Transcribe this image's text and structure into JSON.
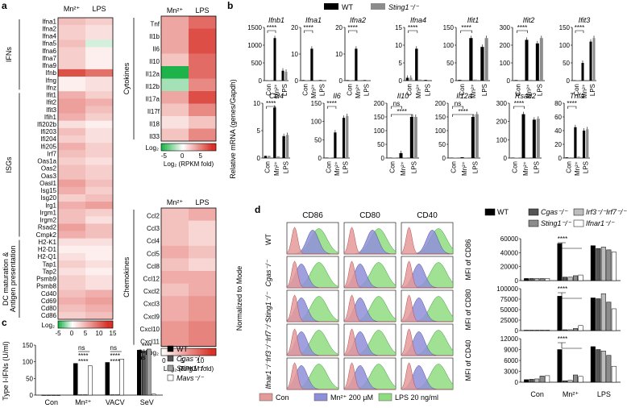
{
  "colors": {
    "red": "#d73027",
    "pink": "#f4a6a0",
    "white": "#ffffff",
    "green": "#1db34a",
    "black": "#000000",
    "gray": "#8c8c8c",
    "hist_red": "#e59a9a",
    "hist_blue": "#8f8fd8",
    "hist_green": "#8fdc80"
  },
  "panel_a": {
    "letter": "a",
    "col_labels": [
      "Mn²⁺",
      "LPS"
    ],
    "ifn_genes": [
      "Ifna1",
      "Ifna2",
      "Ifna4",
      "Ifna5",
      "Ifna6",
      "Ifna7",
      "Ifna9",
      "Ifnb",
      "Ifng",
      "Ifnz"
    ],
    "ifn_vals": [
      [
        4,
        3
      ],
      [
        3,
        2
      ],
      [
        3,
        2
      ],
      [
        4,
        -1
      ],
      [
        3,
        1
      ],
      [
        3,
        1
      ],
      [
        3,
        1
      ],
      [
        11,
        9
      ],
      [
        1,
        2
      ],
      [
        1,
        2
      ]
    ],
    "isg_genes": [
      "Ifit1",
      "Ifit2",
      "Ifit3",
      "Ifih1",
      "Ifi202b",
      "Ifi203",
      "Ifi204",
      "Ifi205",
      "Irf7",
      "Oas1a",
      "Oas2",
      "Oas3",
      "Oasl1",
      "Isg15",
      "Isg20",
      "Irg1",
      "Irgm1",
      "Irgm2",
      "Rsad2",
      "Cmpk2"
    ],
    "isg_vals": [
      [
        5,
        3
      ],
      [
        6,
        5
      ],
      [
        6,
        4
      ],
      [
        5,
        3
      ],
      [
        2,
        1
      ],
      [
        4,
        2
      ],
      [
        3,
        2
      ],
      [
        5,
        3
      ],
      [
        4,
        3
      ],
      [
        3,
        2
      ],
      [
        4,
        3
      ],
      [
        4,
        3
      ],
      [
        6,
        4
      ],
      [
        5,
        3
      ],
      [
        3,
        4
      ],
      [
        5,
        6
      ],
      [
        4,
        3
      ],
      [
        4,
        2
      ],
      [
        6,
        4
      ],
      [
        5,
        4
      ]
    ],
    "dc_genes": [
      "H2-K1",
      "H2-D1",
      "H2-Q1",
      "Tap1",
      "Tap2",
      "Psmb9",
      "Psmb8",
      "Cd40",
      "Cd69",
      "Cd80",
      "Cd86"
    ],
    "dc_vals": [
      [
        2,
        2
      ],
      [
        1,
        1
      ],
      [
        2,
        1
      ],
      [
        3,
        2
      ],
      [
        2,
        1
      ],
      [
        3,
        2
      ],
      [
        3,
        2
      ],
      [
        4,
        5
      ],
      [
        5,
        6
      ],
      [
        4,
        5
      ],
      [
        3,
        4
      ]
    ],
    "group_ifn": "IFNs",
    "group_isg": "ISGs",
    "group_dc": "DC maturation & Antigen presentation",
    "legend_title": "Log₂",
    "legend_ticks": [
      "-5",
      "0",
      "5",
      "10",
      "15"
    ]
  },
  "panel_cyto": {
    "col_labels": [
      "Mn²⁺",
      "LPS"
    ],
    "genes": [
      "Tnf",
      "Il1b",
      "Il6",
      "Il10",
      "Il12a",
      "Il12b",
      "Il17a",
      "Il17f",
      "Il18",
      "Il33"
    ],
    "vals": [
      [
        3,
        5
      ],
      [
        3,
        6
      ],
      [
        3,
        6
      ],
      [
        2,
        5
      ],
      [
        -5,
        5
      ],
      [
        -2,
        4
      ],
      [
        3,
        6
      ],
      [
        2,
        4
      ],
      [
        1,
        2
      ],
      [
        2,
        4
      ]
    ],
    "group": "Cytokines",
    "legend_title": "Log₂",
    "legend_ticks": [
      "-5",
      "0",
      "5"
    ],
    "legend_caption": "Log₂ (RPKM fold)"
  },
  "panel_chemo": {
    "col_labels": [
      "Mn²⁺",
      "LPS"
    ],
    "genes": [
      "Ccl2",
      "Ccl3",
      "Ccl4",
      "Ccl5",
      "Ccl8",
      "Ccl12",
      "Cxcl2",
      "Cxcl3",
      "Cxcl9",
      "Cxcl10",
      "Cxcl11"
    ],
    "vals": [
      [
        3,
        4
      ],
      [
        3,
        2
      ],
      [
        3,
        2
      ],
      [
        4,
        3
      ],
      [
        3,
        2
      ],
      [
        4,
        4
      ],
      [
        3,
        4
      ],
      [
        4,
        5
      ],
      [
        4,
        5
      ],
      [
        5,
        6
      ],
      [
        5,
        6
      ]
    ],
    "group": "Chemokines",
    "legend_title": "Log₂",
    "legend_ticks": [
      "0",
      "5",
      "10"
    ],
    "legend_caption": "Log₂ (RPKM fold)"
  },
  "panel_b": {
    "letter": "b",
    "legend": [
      "WT",
      "Sting1⁻/⁻"
    ],
    "ylabel": "Relative mRNA (genes/Gapdh)",
    "xcats": [
      "Con",
      "Mn²⁺",
      "LPS"
    ],
    "sig": "****",
    "ns": "ns",
    "charts": [
      {
        "gene": "Ifnb1",
        "ticks": [
          "0",
          "500",
          "1000",
          "1500"
        ],
        "ymax": 1500,
        "wt": [
          5,
          1200,
          280
        ],
        "ko": [
          5,
          6,
          250
        ],
        "sigs": [
          [
            0,
            1,
            "****"
          ]
        ]
      },
      {
        "gene": "Ifna1",
        "ticks": [
          "0",
          "10",
          "20"
        ],
        "ymax": 20,
        "wt": [
          0.2,
          12,
          0.2
        ],
        "ko": [
          0.2,
          0.2,
          0.2
        ],
        "sigs": [
          [
            0,
            1,
            "****"
          ]
        ]
      },
      {
        "gene": "Ifna2",
        "ticks": [
          "0",
          "10",
          "20"
        ],
        "ymax": 20,
        "wt": [
          0.2,
          12,
          0.2
        ],
        "ko": [
          0.2,
          0.2,
          0.2
        ],
        "sigs": [
          [
            0,
            1,
            "****"
          ]
        ]
      },
      {
        "gene": "Ifna4",
        "ticks": [
          "0",
          "5",
          "10",
          "15"
        ],
        "ymax": 15,
        "wt": [
          0.8,
          9,
          0.2
        ],
        "ko": [
          0.8,
          0.3,
          0.2
        ],
        "sigs": [
          [
            0,
            1,
            "****"
          ]
        ]
      },
      {
        "gene": "Ifit1",
        "ticks": [
          "0",
          "50",
          "100",
          "150"
        ],
        "ymax": 150,
        "wt": [
          2,
          120,
          95
        ],
        "ko": [
          2,
          3,
          120
        ],
        "sigs": [
          [
            0,
            1,
            "****"
          ]
        ]
      },
      {
        "gene": "Ifit2",
        "ticks": [
          "0",
          "100",
          "200",
          "300"
        ],
        "ymax": 300,
        "wt": [
          3,
          230,
          210
        ],
        "ko": [
          3,
          5,
          240
        ],
        "sigs": [
          [
            0,
            1,
            "****"
          ]
        ]
      },
      {
        "gene": "Ifit3",
        "ticks": [
          "0",
          "50",
          "100",
          "150"
        ],
        "ymax": 150,
        "wt": [
          1,
          50,
          110
        ],
        "ko": [
          1,
          2,
          120
        ],
        "sigs": [
          [
            0,
            1,
            "****"
          ]
        ]
      },
      {
        "gene": "Ccl4",
        "ticks": [
          "0",
          "5",
          "10"
        ],
        "ymax": 10,
        "wt": [
          0.4,
          9.2,
          4
        ],
        "ko": [
          0.4,
          0.3,
          4.2
        ],
        "sigs": [
          [
            0,
            1,
            "****"
          ]
        ]
      },
      {
        "gene": "Il6",
        "ticks": [
          "0",
          "50",
          "100",
          "150"
        ],
        "ymax": 150,
        "wt": [
          1,
          70,
          110
        ],
        "ko": [
          1,
          2,
          115
        ],
        "sigs": [
          [
            0,
            1,
            "****"
          ]
        ]
      },
      {
        "gene": "Il10",
        "ticks": [
          "0",
          "50",
          "100",
          "150",
          "200"
        ],
        "ymax": 200,
        "wt": [
          1,
          18,
          150
        ],
        "ko": [
          1,
          1,
          150
        ],
        "sigs": [
          [
            0,
            1,
            "ns"
          ],
          [
            0,
            2,
            "****"
          ]
        ]
      },
      {
        "gene": "Il12a",
        "ticks": [
          "0",
          "50",
          "100",
          "150",
          "200"
        ],
        "ymax": 200,
        "wt": [
          1,
          3,
          150
        ],
        "ko": [
          1,
          1,
          160
        ],
        "sigs": [
          [
            0,
            1,
            "ns"
          ],
          [
            0,
            2,
            "****"
          ]
        ]
      },
      {
        "gene": "Rsad2",
        "ticks": [
          "0",
          "100",
          "200",
          "300"
        ],
        "ymax": 300,
        "wt": [
          2,
          240,
          210
        ],
        "ko": [
          2,
          3,
          215
        ],
        "sigs": [
          [
            0,
            1,
            "****"
          ]
        ]
      },
      {
        "gene": "Tnfa",
        "ticks": [
          "0",
          "20",
          "40",
          "60",
          "80"
        ],
        "ymax": 80,
        "wt": [
          1,
          45,
          40
        ],
        "ko": [
          1,
          2,
          42
        ],
        "sigs": [
          [
            0,
            1,
            "****"
          ]
        ]
      }
    ]
  },
  "panel_c": {
    "letter": "c",
    "ylabel": "Type I-IFNs (U/ml)",
    "ticks": [
      "0",
      "50",
      "100",
      "150"
    ],
    "ymax": 150,
    "xcats": [
      "Con",
      "Mn²⁺",
      "VACV",
      "SeV"
    ],
    "legend": [
      "WT",
      "Cgas⁻/⁻",
      "Sting1⁻/⁻",
      "Mavs⁻/⁻"
    ],
    "values": [
      [
        0,
        0,
        0,
        0
      ],
      [
        95,
        1,
        1,
        88
      ],
      [
        98,
        1,
        1,
        108
      ],
      [
        135,
        132,
        138,
        3
      ]
    ],
    "sig": "****",
    "ns": "ns"
  },
  "panel_d": {
    "letter": "d",
    "col_labels": [
      "CD86",
      "CD80",
      "CD40"
    ],
    "row_labels": [
      "WT",
      "Cgas⁻/⁻",
      "Sting1⁻/⁻",
      "Irf3⁻/⁻Irf7⁻/⁻",
      "Ifnar1⁻/⁻"
    ],
    "side_label": "Normalized to Mode",
    "hist_legend": [
      "Con",
      "Mn²⁺ 200 μM",
      "LPS 20 ng/ml"
    ],
    "bar_legend": [
      "WT",
      "Cgas⁻/⁻",
      "Irf3⁻/⁻Irf7⁻/⁻",
      "Sting1⁻/⁻",
      "Ifnar1⁻/⁻"
    ],
    "bar_colors": [
      "#000000",
      "#555555",
      "#bdbdbd",
      "#8c8c8c",
      "#ffffff"
    ],
    "xcats": [
      "Con",
      "Mn²⁺",
      "LPS"
    ],
    "sig": "****",
    "bars": [
      {
        "ylabel": "MFI of CD86",
        "ticks": [
          "0",
          "20000",
          "40000",
          "60000"
        ],
        "ymax": 60000,
        "groups": [
          [
            3000,
            3000,
            3000,
            3000,
            3000
          ],
          [
            53000,
            5000,
            5000,
            7000,
            8000
          ],
          [
            50000,
            46000,
            48000,
            44000,
            41000
          ]
        ]
      },
      {
        "ylabel": "MFI of CD80",
        "ticks": [
          "0",
          "25000",
          "50000",
          "75000",
          "100000"
        ],
        "ymax": 100000,
        "groups": [
          [
            1000,
            1000,
            1000,
            1000,
            1000
          ],
          [
            82000,
            2000,
            2000,
            5000,
            12000
          ],
          [
            78000,
            76000,
            88000,
            68000,
            52000
          ]
        ]
      },
      {
        "ylabel": "MFI of CD40",
        "ticks": [
          "0",
          "3000",
          "6000",
          "9000",
          "12000"
        ],
        "ymax": 12000,
        "groups": [
          [
            700,
            800,
            900,
            1700,
            1800
          ],
          [
            9000,
            400,
            500,
            2000,
            1600
          ],
          [
            9800,
            9000,
            8600,
            7400,
            4400
          ]
        ]
      }
    ]
  }
}
